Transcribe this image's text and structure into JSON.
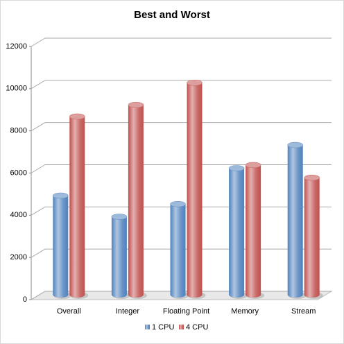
{
  "chart_data": {
    "type": "bar3d",
    "title": "Best and Worst",
    "categories": [
      "Overall",
      "Integer",
      "Floating Point",
      "Memory",
      "Stream"
    ],
    "series": [
      {
        "name": "1 CPU",
        "color": "#4f81bd",
        "values": [
          4700,
          3700,
          4300,
          6000,
          7100
        ]
      },
      {
        "name": "4 CPU",
        "color": "#c0504d",
        "values": [
          8450,
          9000,
          10050,
          6150,
          5550
        ]
      }
    ],
    "ylim": [
      0,
      12000
    ],
    "yticks": [
      0,
      2000,
      4000,
      6000,
      8000,
      10000,
      12000
    ],
    "grid": true,
    "legend": "bottom"
  }
}
